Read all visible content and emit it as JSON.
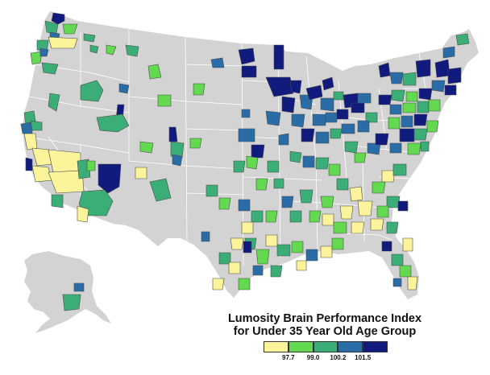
{
  "title": {
    "line1": "Lumosity Brain Performance Index",
    "line2": "for Under 35 Year Old Age Group"
  },
  "legend": {
    "colors": [
      "#fbf49a",
      "#62d94f",
      "#3aae76",
      "#2a6ca6",
      "#111b7d"
    ],
    "ticks": [
      "97.7",
      "99.0",
      "100.2",
      "101.5"
    ]
  },
  "map_colors": {
    "land": "#d3d3d3",
    "background": "#ffffff"
  }
}
